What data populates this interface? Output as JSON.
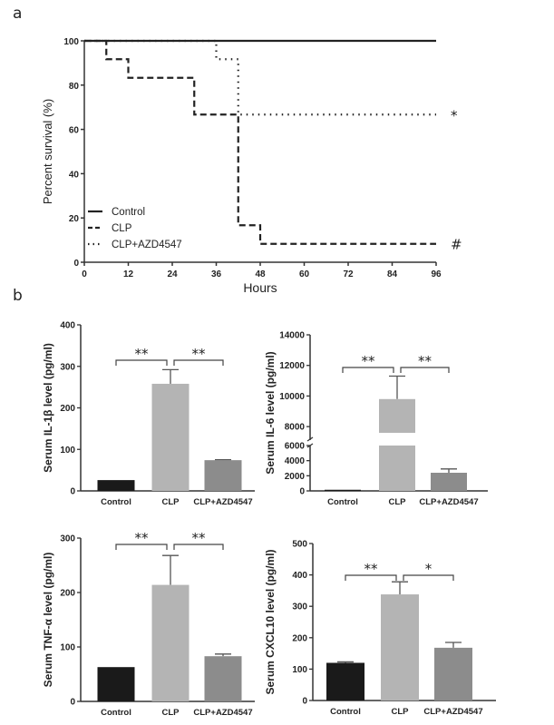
{
  "panel_labels": {
    "a": "a",
    "b": "b"
  },
  "chart_data": [
    {
      "type": "line",
      "subtype": "kaplan-meier survival",
      "xlabel": "Hours",
      "ylabel": "Percent survival (%)",
      "xlim": [
        0,
        96
      ],
      "ylim": [
        0,
        100
      ],
      "xticks": [
        "0",
        "12",
        "24",
        "36",
        "48",
        "60",
        "72",
        "84",
        "96"
      ],
      "yticks": [
        "0",
        "20",
        "40",
        "60",
        "80",
        "100"
      ],
      "legend_position": "bottom-left",
      "series": [
        {
          "name": "Control",
          "style": "solid",
          "steps": [
            [
              0,
              100
            ],
            [
              96,
              100
            ]
          ],
          "annotation": ""
        },
        {
          "name": "CLP",
          "style": "dashed",
          "steps": [
            [
              0,
              100
            ],
            [
              6,
              91.7
            ],
            [
              12,
              83.3
            ],
            [
              30,
              66.7
            ],
            [
              42,
              16.7
            ],
            [
              48,
              8.3
            ],
            [
              96,
              8.3
            ]
          ],
          "annotation": "#"
        },
        {
          "name": "CLP+AZD4547",
          "style": "dotted",
          "steps": [
            [
              0,
              100
            ],
            [
              36,
              91.7
            ],
            [
              42,
              66.7
            ],
            [
              96,
              66.7
            ]
          ],
          "annotation": "*"
        }
      ]
    },
    {
      "type": "bar",
      "ylabel": "Serum IL-1β level  (pg/ml)",
      "categories": [
        "Control",
        "CLP",
        "CLP+AZD4547"
      ],
      "values": [
        26,
        258,
        74
      ],
      "error_upper": [
        26,
        292,
        75
      ],
      "ylim": [
        0,
        400
      ],
      "yticks": [
        "0",
        "100",
        "200",
        "300",
        "400"
      ],
      "significance": [
        "**",
        "**"
      ],
      "colors": [
        "#1a1a1a",
        "#b4b4b4",
        "#8c8c8c"
      ]
    },
    {
      "type": "bar",
      "ylabel": "Serum IL-6 level  (pg/ml)",
      "categories": [
        "Control",
        "CLP",
        "CLP+AZD4547"
      ],
      "values": [
        150,
        9800,
        2400
      ],
      "error_upper": [
        150,
        11300,
        2900
      ],
      "ylim": [
        0,
        14000
      ],
      "axis_break": [
        6000,
        7000
      ],
      "yticks": [
        "0",
        "2000",
        "4000",
        "6000",
        "8000",
        "10000",
        "12000",
        "14000"
      ],
      "significance": [
        "**",
        "**"
      ],
      "colors": [
        "#1a1a1a",
        "#b4b4b4",
        "#8c8c8c"
      ]
    },
    {
      "type": "bar",
      "ylabel": "Serum TNF-α level  (pg/ml)",
      "categories": [
        "Control",
        "CLP",
        "CLP+AZD4547"
      ],
      "values": [
        63,
        214,
        83
      ],
      "error_upper": [
        63,
        268,
        87
      ],
      "ylim": [
        0,
        300
      ],
      "yticks": [
        "0",
        "100",
        "200",
        "300"
      ],
      "significance": [
        "**",
        "**"
      ],
      "colors": [
        "#1a1a1a",
        "#b4b4b4",
        "#8c8c8c"
      ]
    },
    {
      "type": "bar",
      "ylabel": "Serum CXCL10 level  (pg/ml)",
      "categories": [
        "Control",
        "CLP",
        "CLP+AZD4547"
      ],
      "values": [
        120,
        338,
        168
      ],
      "error_upper": [
        123,
        378,
        185
      ],
      "ylim": [
        0,
        500
      ],
      "yticks": [
        "0",
        "100",
        "200",
        "300",
        "400",
        "500"
      ],
      "significance": [
        "**",
        "*"
      ],
      "colors": [
        "#1a1a1a",
        "#b4b4b4",
        "#8c8c8c"
      ]
    }
  ]
}
